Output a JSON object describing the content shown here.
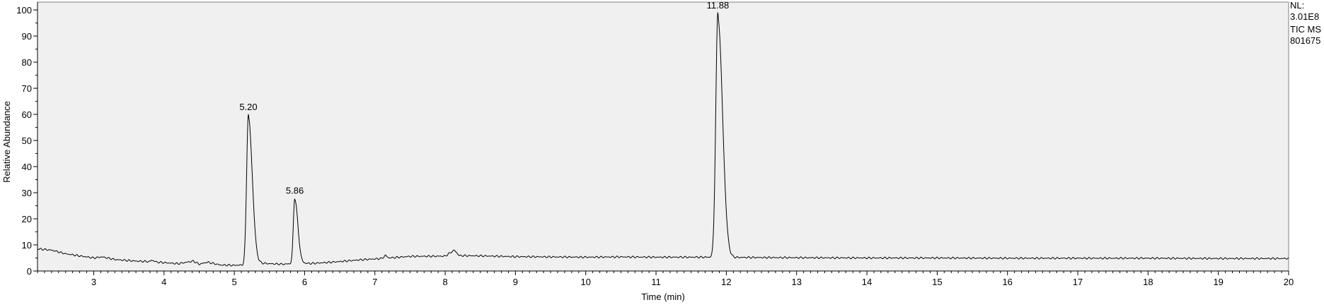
{
  "info": {
    "nl_label": "NL:",
    "nl_value": "3.01E8",
    "trace_type": "TIC  MS",
    "file_id": "801675"
  },
  "chart_data": {
    "type": "line",
    "xlabel": "Time (min)",
    "ylabel": "Relative Abundance",
    "xlim": [
      2.2,
      20
    ],
    "ylim": [
      0,
      103
    ],
    "x_ticks": [
      3,
      4,
      5,
      6,
      7,
      8,
      9,
      10,
      11,
      12,
      13,
      14,
      15,
      16,
      17,
      18,
      19,
      20
    ],
    "y_ticks": [
      0,
      10,
      20,
      30,
      40,
      50,
      60,
      70,
      80,
      90,
      100
    ],
    "grid": false,
    "plot_background": "#f0f0f0",
    "line_color": "#000000",
    "baseline": [
      [
        2.2,
        8.5
      ],
      [
        2.4,
        8.0
      ],
      [
        2.6,
        6.6
      ],
      [
        2.8,
        5.8
      ],
      [
        3.0,
        5.0
      ],
      [
        3.12,
        5.4
      ],
      [
        3.3,
        4.4
      ],
      [
        3.6,
        3.8
      ],
      [
        3.8,
        3.6
      ],
      [
        3.82,
        4.2
      ],
      [
        3.9,
        3.4
      ],
      [
        4.2,
        2.8
      ],
      [
        4.42,
        3.8
      ],
      [
        4.5,
        2.6
      ],
      [
        4.62,
        3.4
      ],
      [
        4.8,
        2.3
      ],
      [
        5.0,
        2.2
      ],
      [
        5.15,
        2.3
      ],
      [
        5.3,
        3.2
      ],
      [
        5.5,
        2.8
      ],
      [
        5.7,
        2.6
      ],
      [
        5.8,
        2.8
      ],
      [
        5.95,
        3.0
      ],
      [
        6.1,
        2.9
      ],
      [
        6.4,
        3.4
      ],
      [
        6.8,
        4.3
      ],
      [
        7.1,
        4.8
      ],
      [
        7.15,
        6.0
      ],
      [
        7.2,
        5.0
      ],
      [
        7.5,
        5.6
      ],
      [
        8.0,
        5.7
      ],
      [
        8.13,
        8.0
      ],
      [
        8.2,
        5.9
      ],
      [
        8.5,
        5.8
      ],
      [
        9.0,
        5.5
      ],
      [
        10.0,
        5.3
      ],
      [
        10.5,
        5.4
      ],
      [
        11.0,
        5.3
      ],
      [
        11.7,
        5.3
      ],
      [
        12.2,
        5.2
      ],
      [
        13.0,
        5.1
      ],
      [
        14.0,
        5.0
      ],
      [
        15.0,
        5.0
      ],
      [
        16.0,
        4.9
      ],
      [
        17.0,
        4.9
      ],
      [
        18.0,
        4.9
      ],
      [
        19.0,
        4.8
      ],
      [
        20.0,
        4.8
      ]
    ],
    "peaks": [
      {
        "rt": 5.2,
        "height": 60,
        "width": 0.025,
        "label": "5.20"
      },
      {
        "rt": 5.86,
        "height": 28,
        "width": 0.02,
        "label": "5.86"
      },
      {
        "rt": 11.88,
        "height": 99,
        "width": 0.03,
        "label": "11.88"
      }
    ]
  }
}
